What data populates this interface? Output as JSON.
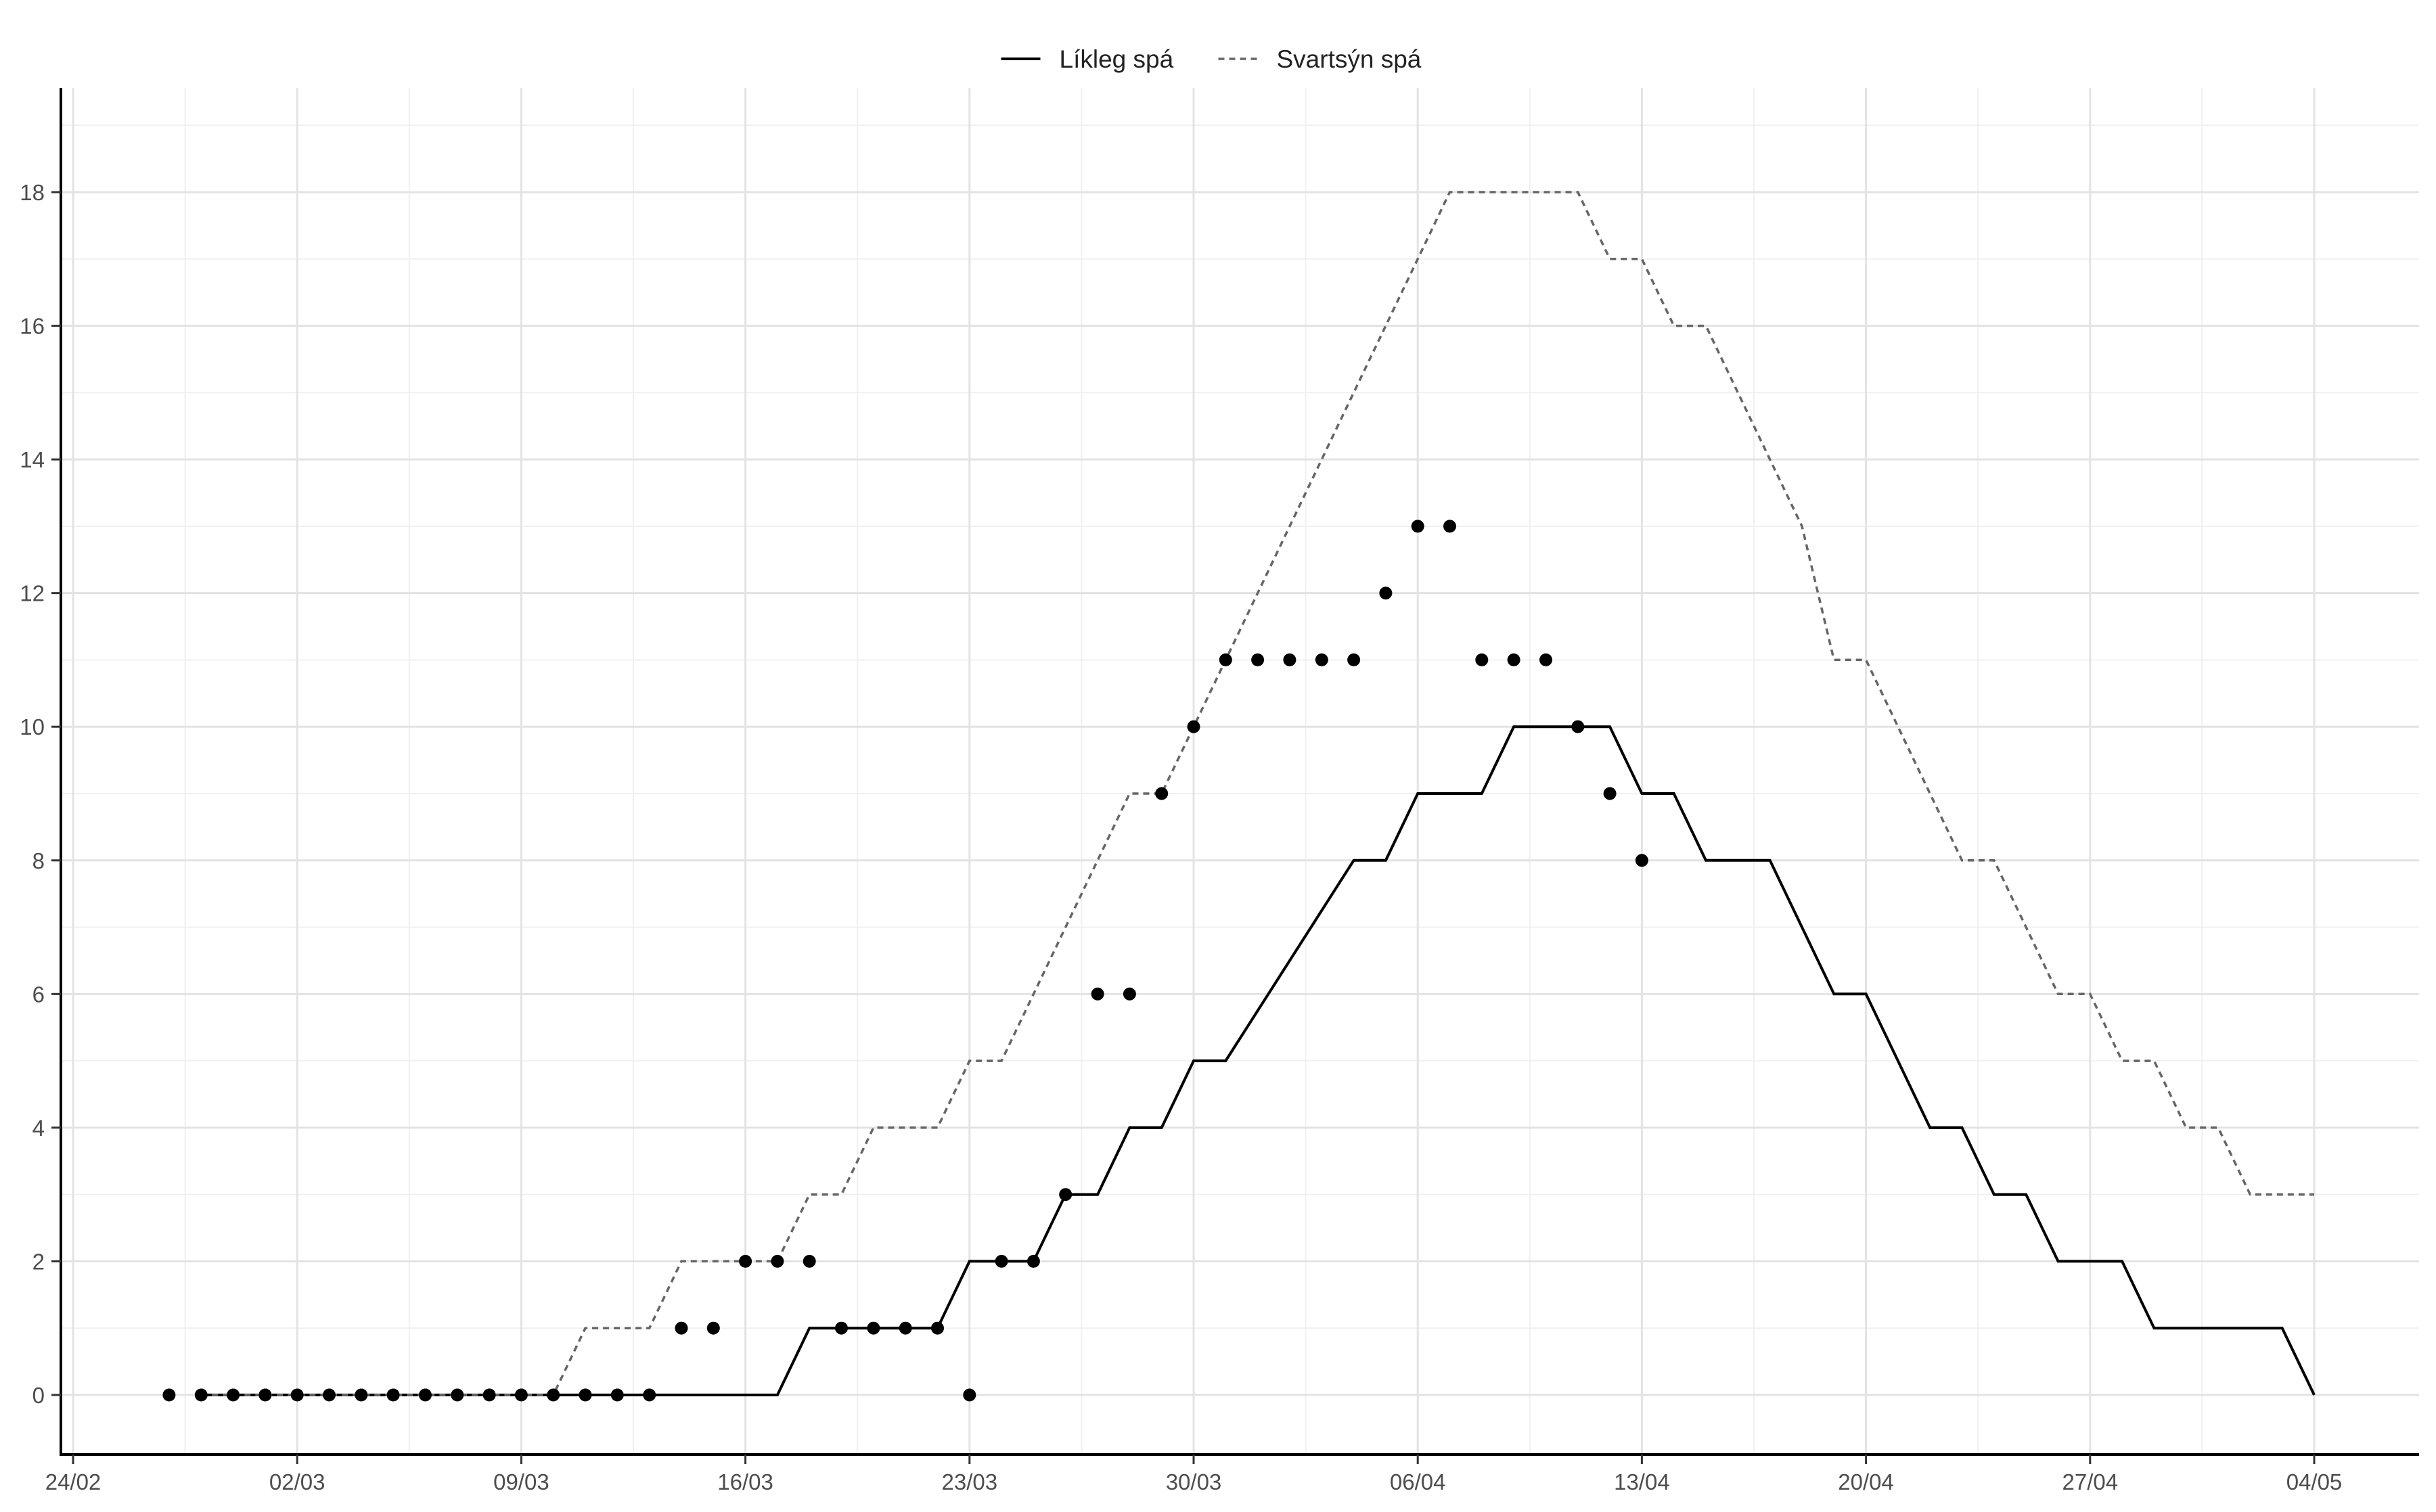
{
  "chart_data": {
    "type": "line",
    "title": "",
    "xlabel": "",
    "ylabel": "",
    "x_axis": {
      "type": "date",
      "range": [
        "2020-02-24",
        "2020-05-05"
      ],
      "ticks": [
        {
          "date": "2020-02-24",
          "label": "24/02"
        },
        {
          "date": "2020-03-02",
          "label": "02/03"
        },
        {
          "date": "2020-03-09",
          "label": "09/03"
        },
        {
          "date": "2020-03-16",
          "label": "16/03"
        },
        {
          "date": "2020-03-23",
          "label": "23/03"
        },
        {
          "date": "2020-03-30",
          "label": "30/03"
        },
        {
          "date": "2020-04-06",
          "label": "06/04"
        },
        {
          "date": "2020-04-13",
          "label": "13/04"
        },
        {
          "date": "2020-04-20",
          "label": "20/04"
        },
        {
          "date": "2020-04-27",
          "label": "27/04"
        },
        {
          "date": "2020-05-04",
          "label": "04/05"
        }
      ]
    },
    "y_axis": {
      "range": [
        0,
        18
      ],
      "ticks": [
        0,
        2,
        4,
        6,
        8,
        10,
        12,
        14,
        16,
        18
      ]
    },
    "grid": true,
    "legend_position": "top",
    "series": [
      {
        "name": "Líkleg spá",
        "style": "solid",
        "color": "#000000",
        "points": [
          [
            "2020-02-28",
            0
          ],
          [
            "2020-03-01",
            0
          ],
          [
            "2020-03-10",
            0
          ],
          [
            "2020-03-17",
            0
          ],
          [
            "2020-03-18",
            1
          ],
          [
            "2020-03-22",
            1
          ],
          [
            "2020-03-23",
            2
          ],
          [
            "2020-03-25",
            2
          ],
          [
            "2020-03-26",
            3
          ],
          [
            "2020-03-27",
            3
          ],
          [
            "2020-03-28",
            4
          ],
          [
            "2020-03-29",
            4
          ],
          [
            "2020-03-30",
            5
          ],
          [
            "2020-03-31",
            5
          ],
          [
            "2020-04-04",
            8
          ],
          [
            "2020-04-05",
            8
          ],
          [
            "2020-04-06",
            9
          ],
          [
            "2020-04-08",
            9
          ],
          [
            "2020-04-09",
            10
          ],
          [
            "2020-04-12",
            10
          ],
          [
            "2020-04-13",
            9
          ],
          [
            "2020-04-14",
            9
          ],
          [
            "2020-04-15",
            8
          ],
          [
            "2020-04-17",
            8
          ],
          [
            "2020-04-19",
            6
          ],
          [
            "2020-04-20",
            6
          ],
          [
            "2020-04-22",
            4
          ],
          [
            "2020-04-23",
            4
          ],
          [
            "2020-04-24",
            3
          ],
          [
            "2020-04-25",
            3
          ],
          [
            "2020-04-26",
            2
          ],
          [
            "2020-04-28",
            2
          ],
          [
            "2020-04-29",
            1
          ],
          [
            "2020-05-03",
            1
          ],
          [
            "2020-05-04",
            0
          ]
        ]
      },
      {
        "name": "Svartsýn spá",
        "style": "dashed",
        "color": "#666666",
        "points": [
          [
            "2020-02-28",
            0
          ],
          [
            "2020-03-01",
            0
          ],
          [
            "2020-03-10",
            0
          ],
          [
            "2020-03-11",
            1
          ],
          [
            "2020-03-13",
            1
          ],
          [
            "2020-03-14",
            2
          ],
          [
            "2020-03-17",
            2
          ],
          [
            "2020-03-18",
            3
          ],
          [
            "2020-03-19",
            3
          ],
          [
            "2020-03-20",
            4
          ],
          [
            "2020-03-22",
            4
          ],
          [
            "2020-03-23",
            5
          ],
          [
            "2020-03-24",
            5
          ],
          [
            "2020-03-28",
            9
          ],
          [
            "2020-03-29",
            9
          ],
          [
            "2020-04-07",
            18
          ],
          [
            "2020-04-11",
            18
          ],
          [
            "2020-04-12",
            17
          ],
          [
            "2020-04-13",
            17
          ],
          [
            "2020-04-14",
            16
          ],
          [
            "2020-04-15",
            16
          ],
          [
            "2020-04-18",
            13
          ],
          [
            "2020-04-19",
            11
          ],
          [
            "2020-04-20",
            11
          ],
          [
            "2020-04-23",
            8
          ],
          [
            "2020-04-24",
            8
          ],
          [
            "2020-04-26",
            6
          ],
          [
            "2020-04-27",
            6
          ],
          [
            "2020-04-28",
            5
          ],
          [
            "2020-04-29",
            5
          ],
          [
            "2020-04-30",
            4
          ],
          [
            "2020-05-01",
            4
          ],
          [
            "2020-05-02",
            3
          ],
          [
            "2020-05-04",
            3
          ]
        ]
      },
      {
        "style": "points",
        "color": "#000000",
        "points": [
          [
            "2020-02-27",
            0
          ],
          [
            "2020-02-28",
            0
          ],
          [
            "2020-02-29",
            0
          ],
          [
            "2020-03-01",
            0
          ],
          [
            "2020-03-02",
            0
          ],
          [
            "2020-03-03",
            0
          ],
          [
            "2020-03-04",
            0
          ],
          [
            "2020-03-05",
            0
          ],
          [
            "2020-03-06",
            0
          ],
          [
            "2020-03-07",
            0
          ],
          [
            "2020-03-08",
            0
          ],
          [
            "2020-03-09",
            0
          ],
          [
            "2020-03-10",
            0
          ],
          [
            "2020-03-11",
            0
          ],
          [
            "2020-03-12",
            0
          ],
          [
            "2020-03-13",
            0
          ],
          [
            "2020-03-14",
            1
          ],
          [
            "2020-03-15",
            1
          ],
          [
            "2020-03-16",
            2
          ],
          [
            "2020-03-17",
            2
          ],
          [
            "2020-03-18",
            2
          ],
          [
            "2020-03-19",
            1
          ],
          [
            "2020-03-20",
            1
          ],
          [
            "2020-03-21",
            1
          ],
          [
            "2020-03-22",
            1
          ],
          [
            "2020-03-23",
            0
          ],
          [
            "2020-03-24",
            2
          ],
          [
            "2020-03-25",
            2
          ],
          [
            "2020-03-26",
            3
          ],
          [
            "2020-03-27",
            6
          ],
          [
            "2020-03-28",
            6
          ],
          [
            "2020-03-29",
            9
          ],
          [
            "2020-03-30",
            10
          ],
          [
            "2020-03-31",
            11
          ],
          [
            "2020-04-01",
            11
          ],
          [
            "2020-04-02",
            11
          ],
          [
            "2020-04-03",
            11
          ],
          [
            "2020-04-04",
            11
          ],
          [
            "2020-04-05",
            12
          ],
          [
            "2020-04-06",
            13
          ],
          [
            "2020-04-07",
            13
          ],
          [
            "2020-04-08",
            11
          ],
          [
            "2020-04-09",
            11
          ],
          [
            "2020-04-10",
            11
          ],
          [
            "2020-04-11",
            10
          ],
          [
            "2020-04-12",
            9
          ],
          [
            "2020-04-13",
            8
          ]
        ]
      }
    ]
  }
}
